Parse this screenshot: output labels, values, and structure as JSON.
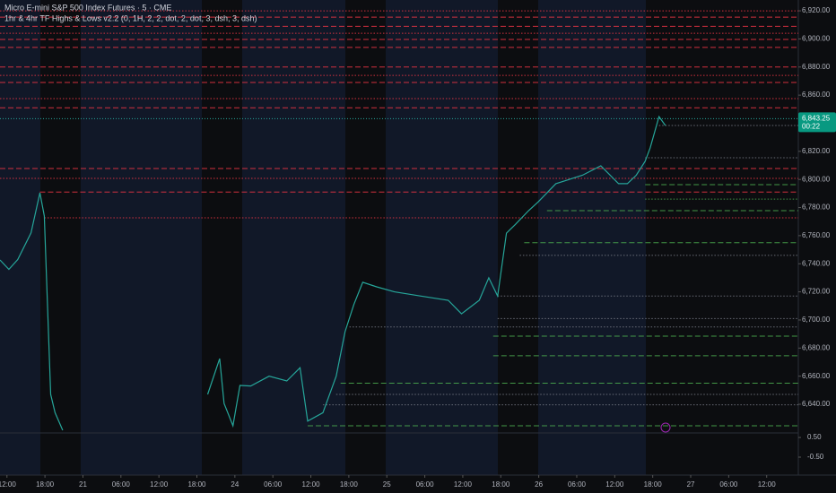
{
  "chart_data": {
    "type": "line",
    "title": "Micro E-mini S&P 500 Index Futures · 5 · CME",
    "subtitle": "1hr & 4hr TF Highs & Lows v2.2 (0, 1H, 2, 2, dot, 2, dot, 3, dsh, 3, dsh)",
    "x": [
      -1.1,
      0.3,
      1.7,
      3.8,
      5.2,
      5.9,
      6.9,
      7.6,
      8.8,
      20,
      31.7,
      33.6,
      34.3,
      35.7,
      36.8,
      38.5,
      41.4,
      44.2,
      46.3,
      47.5,
      49.9,
      52,
      53.4,
      54.8,
      56.2,
      58.4,
      61.2,
      65.4,
      69.7,
      71.8,
      74.6,
      76.1,
      77.5,
      78.9,
      80.3,
      82.4,
      83.9,
      86.7,
      90.9,
      93.8,
      96.6,
      98,
      99.4,
      100.8,
      101.6,
      103,
      104
    ],
    "values": [
      6742.7,
      6736,
      6743,
      6762,
      6790.5,
      6774,
      6647,
      6634,
      6621.5,
      null,
      6647,
      6672.5,
      6640.6,
      6624.7,
      6653.4,
      6653,
      6660,
      6656.6,
      6666,
      6628,
      6634,
      6660,
      6691.7,
      6711,
      6726.8,
      6723.6,
      6720,
      6717,
      6714,
      6704.4,
      6714,
      6730,
      6717,
      6761.8,
      6768,
      6777.8,
      6784,
      6797,
      6803,
      6809.7,
      6797,
      6797,
      6803,
      6812.9,
      6822.4,
      6844.7,
      6838.4
    ],
    "color": "#26a69a",
    "xlim": [
      -1.1,
      125
    ],
    "xticks": [
      {
        "value": 0,
        "label": "12:00"
      },
      {
        "value": 6,
        "label": "18:00"
      },
      {
        "value": 12,
        "label": "21"
      },
      {
        "value": 18,
        "label": "06:00"
      },
      {
        "value": 24,
        "label": "12:00"
      },
      {
        "value": 30,
        "label": "18:00"
      },
      {
        "value": 36,
        "label": "24"
      },
      {
        "value": 42,
        "label": "06:00"
      },
      {
        "value": 48,
        "label": "12:00"
      },
      {
        "value": 54,
        "label": "18:00"
      },
      {
        "value": 60,
        "label": "25"
      },
      {
        "value": 66,
        "label": "06:00"
      },
      {
        "value": 72,
        "label": "12:00"
      },
      {
        "value": 78,
        "label": "18:00"
      },
      {
        "value": 84,
        "label": "26"
      },
      {
        "value": 90,
        "label": "06:00"
      },
      {
        "value": 96,
        "label": "12:00"
      },
      {
        "value": 102,
        "label": "18:00"
      },
      {
        "value": 108,
        "label": "27"
      },
      {
        "value": 114,
        "label": "06:00"
      },
      {
        "value": 120,
        "label": "12:00"
      }
    ],
    "ylim": [
      6619.6,
      6927.7
    ],
    "yticks": [
      {
        "value": 6920,
        "label": "6,920.00"
      },
      {
        "value": 6900,
        "label": "6,900.00"
      },
      {
        "value": 6880,
        "label": "6,880.00"
      },
      {
        "value": 6860,
        "label": "6,860.00"
      },
      {
        "value": 6840,
        "label": "6,840.00"
      },
      {
        "value": 6820,
        "label": "6,820.00"
      },
      {
        "value": 6800,
        "label": "6,800.00"
      },
      {
        "value": 6780,
        "label": "6,780.00"
      },
      {
        "value": 6760,
        "label": "6,760.00"
      },
      {
        "value": 6740,
        "label": "6,740.00"
      },
      {
        "value": 6720,
        "label": "6,720.00"
      },
      {
        "value": 6700,
        "label": "6,700.00"
      },
      {
        "value": 6680,
        "label": "6,680.00"
      },
      {
        "value": 6660,
        "label": "6,660.00"
      },
      {
        "value": 6640,
        "label": "6,640.00"
      }
    ],
    "current_price": {
      "value": 6843.25,
      "label": "6,843.25"
    },
    "countdown": "00:22",
    "levels": [
      {
        "price": 6920,
        "start": -1.1,
        "color": "#f23645",
        "style": "dot"
      },
      {
        "price": 6915.5,
        "start": -1.1,
        "color": "#f23645",
        "style": "dash"
      },
      {
        "price": 6909,
        "start": -1.1,
        "color": "#f23645",
        "style": "dash"
      },
      {
        "price": 6904,
        "start": -1.1,
        "color": "#f23645",
        "style": "dot"
      },
      {
        "price": 6899.6,
        "start": -1.1,
        "color": "#f23645",
        "style": "dash"
      },
      {
        "price": 6894,
        "start": -1.1,
        "color": "#f23645",
        "style": "dash"
      },
      {
        "price": 6880,
        "start": -1.1,
        "color": "#f23645",
        "style": "dash"
      },
      {
        "price": 6874,
        "start": -1.1,
        "color": "#f23645",
        "style": "dot"
      },
      {
        "price": 6869,
        "start": -1.1,
        "color": "#f23645",
        "style": "dash"
      },
      {
        "price": 6857.5,
        "start": -1.1,
        "color": "#f23645",
        "style": "dot"
      },
      {
        "price": 6851,
        "start": -1.1,
        "color": "#f23645",
        "style": "dash"
      },
      {
        "price": 6807.8,
        "start": -1.1,
        "color": "#f23645",
        "style": "dash"
      },
      {
        "price": 6800.8,
        "start": -1.1,
        "color": "#f23645",
        "style": "dot"
      },
      {
        "price": 6791,
        "start": 5.2,
        "color": "#f23645",
        "style": "dash"
      },
      {
        "price": 6772.7,
        "start": 5.9,
        "color": "#f23645",
        "style": "dot"
      },
      {
        "price": 6796.3,
        "start": 100.8,
        "color": "#4caf50",
        "style": "dash"
      },
      {
        "price": 6786,
        "start": 100.8,
        "color": "#4caf50",
        "style": "dot"
      },
      {
        "price": 6777.8,
        "start": 85.3,
        "color": "#4caf50",
        "style": "dash"
      },
      {
        "price": 6755,
        "start": 81.7,
        "color": "#4caf50",
        "style": "dash"
      },
      {
        "price": 6688.5,
        "start": 76.8,
        "color": "#4caf50",
        "style": "dash"
      },
      {
        "price": 6674.5,
        "start": 76.8,
        "color": "#4caf50",
        "style": "dash"
      },
      {
        "price": 6655,
        "start": 52.7,
        "color": "#4caf50",
        "style": "dash"
      },
      {
        "price": 6624.7,
        "start": 47.5,
        "color": "#4caf50",
        "style": "dash"
      },
      {
        "price": 6838.4,
        "start": 103,
        "color": "#787b86",
        "style": "dot"
      },
      {
        "price": 6815.4,
        "start": 100.8,
        "color": "#787b86",
        "style": "dot"
      },
      {
        "price": 6746,
        "start": 81,
        "color": "#787b86",
        "style": "dot"
      },
      {
        "price": 6717,
        "start": 77.5,
        "color": "#787b86",
        "style": "dot"
      },
      {
        "price": 6701,
        "start": 77.5,
        "color": "#787b86",
        "style": "dot"
      },
      {
        "price": 6695,
        "start": 54.1,
        "color": "#787b86",
        "style": "dot"
      },
      {
        "price": 6647,
        "start": 52,
        "color": "#787b86",
        "style": "dot"
      },
      {
        "price": 6639.6,
        "start": 49.9,
        "color": "#787b86",
        "style": "dot"
      }
    ],
    "lower_pane": {
      "ylim": [
        -1.32,
        0.73
      ],
      "yticks": [
        {
          "value": 0.5,
          "label": "0.50"
        },
        {
          "value": -0.5,
          "label": "-0.50"
        }
      ]
    }
  }
}
